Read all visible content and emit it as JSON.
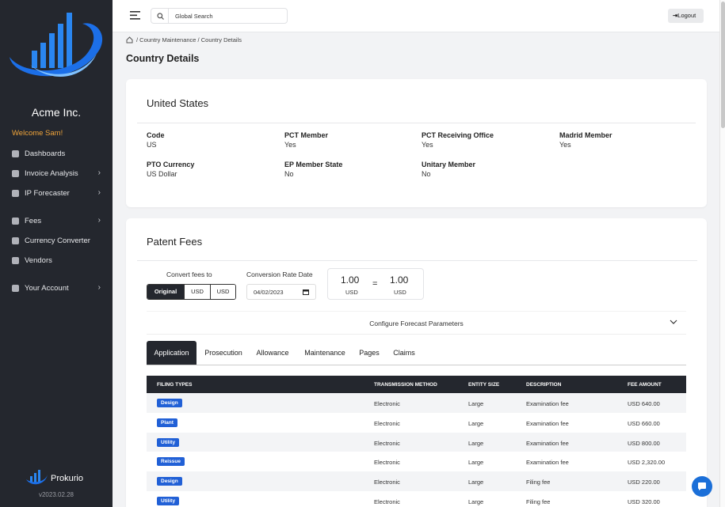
{
  "sidebar": {
    "brand": "Acme Inc.",
    "welcome": "Welcome Sam!",
    "menu": [
      {
        "label": "Dashboards",
        "expandable": false
      },
      {
        "label": "Invoice Analysis",
        "expandable": true
      },
      {
        "label": "IP Forecaster",
        "expandable": true
      },
      {
        "label": "Fees",
        "expandable": true
      },
      {
        "label": "Currency Converter",
        "expandable": false
      },
      {
        "label": "Vendors",
        "expandable": false
      },
      {
        "label": "Your Account",
        "expandable": true
      }
    ],
    "footer_brand": "Prokurio",
    "version": "v2023.02.28"
  },
  "topbar": {
    "search_placeholder": "Global Search",
    "logout": "Logout"
  },
  "breadcrumb": [
    "Country Maintenance",
    "Country Details"
  ],
  "page_title": "Country Details",
  "country_card": {
    "title": "United States",
    "fields": [
      {
        "label": "Code",
        "value": "US"
      },
      {
        "label": "PCT Member",
        "value": "Yes"
      },
      {
        "label": "PCT Receiving Office",
        "value": "Yes"
      },
      {
        "label": "Madrid Member",
        "value": "Yes"
      },
      {
        "label": "PTO Currency",
        "value": "US Dollar"
      },
      {
        "label": "EP Member State",
        "value": "No"
      },
      {
        "label": "Unitary Member",
        "value": "No"
      }
    ]
  },
  "fees_card": {
    "title": "Patent Fees",
    "convert_label": "Convert fees to",
    "buttons": [
      "Original",
      "USD",
      "USD"
    ],
    "date_label": "Conversion Rate Date",
    "date_value": "04/02/2023",
    "rate": {
      "from_amount": "1.00",
      "from_currency": "USD",
      "equals": "=",
      "to_amount": "1.00",
      "to_currency": "USD"
    },
    "accordion": "Configure Forecast Parameters",
    "tabs": [
      "Application",
      "Prosecution",
      "Allowance",
      "Maintenance",
      "Pages",
      "Claims"
    ],
    "table": {
      "headers": [
        "FILING TYPES",
        "TRANSMISSION METHOD",
        "ENTITY SIZE",
        "DESCRIPTION",
        "FEE AMOUNT"
      ],
      "rows": [
        [
          "Design",
          "Electronic",
          "Large",
          "Examination fee",
          "USD 640.00"
        ],
        [
          "Plant",
          "Electronic",
          "Large",
          "Examination fee",
          "USD 660.00"
        ],
        [
          "Utility",
          "Electronic",
          "Large",
          "Examination fee",
          "USD 800.00"
        ],
        [
          "Reissue",
          "Electronic",
          "Large",
          "Examination fee",
          "USD 2,320.00"
        ],
        [
          "Design",
          "Electronic",
          "Large",
          "Filing fee",
          "USD 220.00"
        ],
        [
          "Utility",
          "Electronic",
          "Large",
          "Filing fee",
          "USD 320.00"
        ]
      ]
    }
  }
}
